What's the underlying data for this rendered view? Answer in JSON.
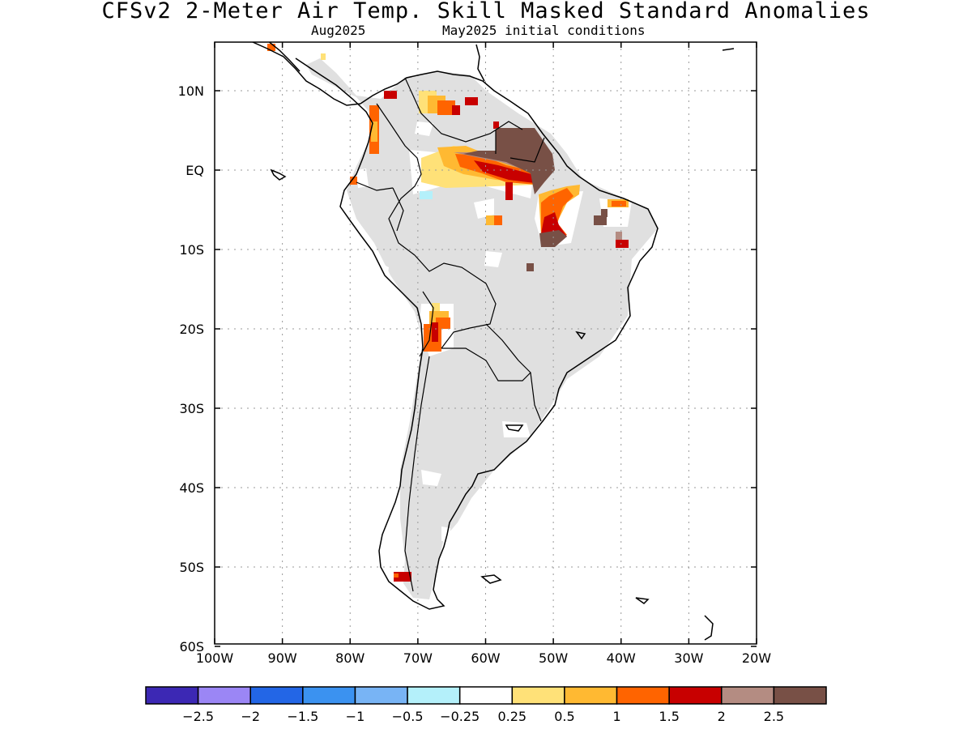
{
  "header": {
    "title": "CFSv2 2-Meter Air Temp. Skill Masked Standard Anomalies",
    "valid_month": "Aug2025",
    "init": "May2025 initial conditions"
  },
  "axes": {
    "lat_ticks": [
      "10N",
      "EQ",
      "10S",
      "20S",
      "30S",
      "40S",
      "50S",
      "60S"
    ],
    "lon_ticks": [
      "100W",
      "90W",
      "80W",
      "70W",
      "60W",
      "50W",
      "40W",
      "30W",
      "20W"
    ]
  },
  "colorbar": {
    "colors": [
      "#3c28b4",
      "#9b86f5",
      "#2366e6",
      "#3b92f0",
      "#78b4f5",
      "#b4f0fa",
      "#ffffff",
      "#ffe178",
      "#ffb932",
      "#ff6400",
      "#c80000",
      "#b48c82",
      "#785046"
    ],
    "labels": [
      "-2.5",
      "-2",
      "-1.5",
      "-1",
      "-0.5",
      "-0.25",
      "0.25",
      "0.5",
      "1",
      "1.5",
      "2",
      "2.5"
    ]
  },
  "map_colors": {
    "land_masked": "#e0e0e0",
    "coast": "#000000",
    "grid": "#999999"
  }
}
